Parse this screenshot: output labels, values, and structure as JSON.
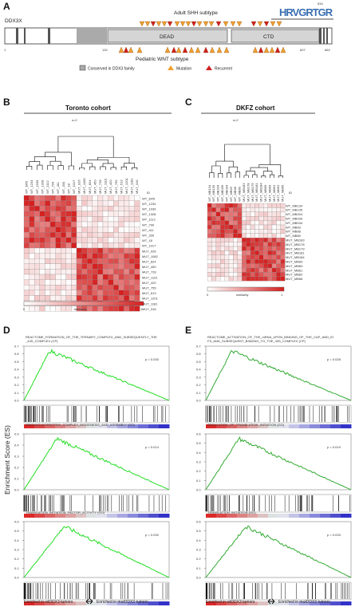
{
  "figure": {
    "panel_a": {
      "letter": "A",
      "gene_label": "DDX3X",
      "domain_labels": [
        "DEAD",
        "CTD"
      ],
      "position_ticks": [
        "1",
        "132",
        "534",
        "607",
        "662"
      ],
      "top_subtype": "Adult SHH subtype",
      "bottom_subtype": "Pediatric WNT subtype",
      "logo_text": "HRVGRTGR",
      "legend": [
        {
          "label": "Conserved in DDX3 family",
          "color": "#aaaaaa"
        },
        {
          "label": "Mutation",
          "color": "#f0a030"
        },
        {
          "label": "Recurrent",
          "color": "#d02020"
        }
      ]
    },
    "panel_b": {
      "letter": "B",
      "cohort": "Toronto cohort",
      "height_label": "s=2",
      "scale_min": "0",
      "scale_max": "1",
      "scale_label": "similarity",
      "column_header": "ID",
      "samples": [
        "WT_ER5",
        "WT_1234",
        "WT_1939",
        "WT_1328",
        "WT_1112",
        "WT_790",
        "WT_411",
        "WT_330",
        "WT_18",
        "WT_1017",
        "MUT_926",
        "MUT_1082",
        "MUT_824",
        "MUT_450",
        "MUT_728",
        "MUT_1110",
        "MUT_420",
        "MUT_755",
        "MUT_513",
        "MUT_1201",
        "MUT_1181",
        "MUT_316"
      ]
    },
    "panel_c": {
      "letter": "C",
      "cohort": "DKFZ cohort",
      "height_label": "s=2",
      "scale_min": "0",
      "scale_max": "1",
      "scale_label": "similarity",
      "column_header": "ID",
      "samples": [
        "WT_MB134",
        "WT_MB135",
        "WT_MB204",
        "WT_MB039",
        "WT_MB034",
        "WT_MB63",
        "WT_MB68",
        "WT_MB80",
        "MUT_MB183",
        "MUT_MB178",
        "MUT_MB179",
        "MUT_MB181",
        "MUT_MB184",
        "MUT_MB59",
        "MUT_MB69",
        "MUT_MB61",
        "MUT_MB62",
        "MUT_MB66"
      ]
    },
    "panel_d": {
      "letter": "D",
      "y_axis_label": "Enrichment Score (ES)",
      "plots": [
        {
          "title": "REACTOME_FORMATION_OF_THE_TERNARY_COMPLEX_AND_SUBSEQUENTLY_THE_43S_COMPLEX (CP)",
          "p": "p = 0.030",
          "ymax": 0.7
        },
        {
          "title": "RIBONUCLEOPROTEIN_COMPLEX_BIOGENESIS_AND_ASSEMBLY (GO)",
          "p": "p = 0.014",
          "ymax": 0.5
        },
        {
          "title": "TRANSLATION_INITIATION_FACTOR_ACTIVITY (GO)",
          "p": "p = 0.030",
          "ymax": 0.6
        }
      ],
      "x_left": "Enriched in wtDDX3 tumors",
      "x_right": "Enriched in mutDDX3 tumors"
    },
    "panel_e": {
      "letter": "E",
      "plots": [
        {
          "title": "REACTOME_ACTIVATION_OF_THE_mRNA_UPON_BINDING_OF_THE_CAP_AND_EIFS_AND_SUBSEQUENT_BINDING_TO_THE_43S_COMPLEX (CP)",
          "p": "p = 0.028",
          "ymax": 0.7
        },
        {
          "title": "REGULATION_OF_TRANSLATION_INITIATION (GO)",
          "p": "p = 0.019",
          "ymax": 0.6
        },
        {
          "title": "TRANSLATION_INITIATION (GO)",
          "p": "p = 0.033",
          "ymax": 0.6
        }
      ],
      "x_left": "Enriched in wtDDX3 tumors",
      "x_right": "Enriched in mutDDX3 tumors"
    }
  }
}
